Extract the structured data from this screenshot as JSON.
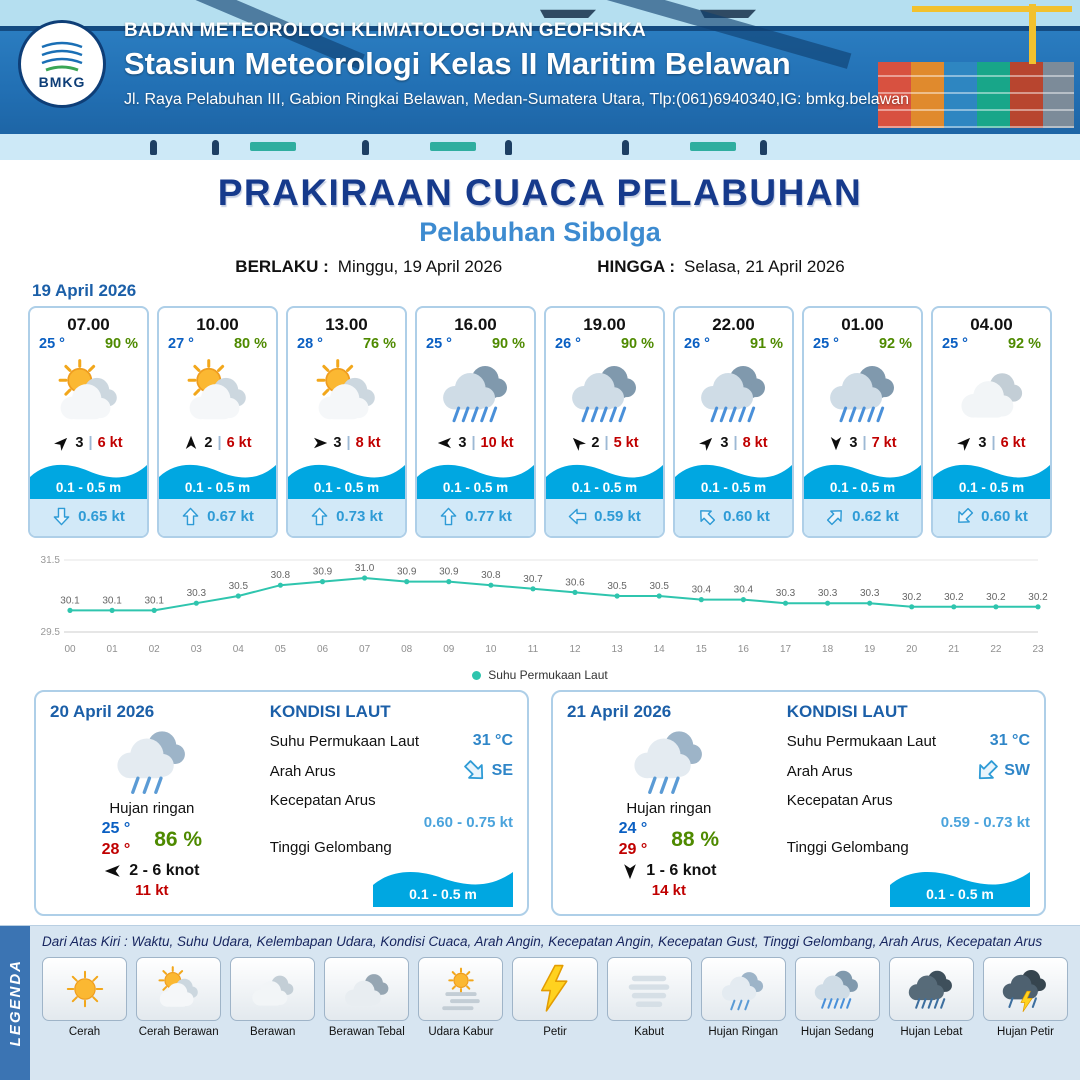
{
  "header": {
    "logo_text": "BMKG",
    "org": "BADAN METEOROLOGI KLIMATOLOGI DAN GEOFISIKA",
    "station": "Stasiun Meteorologi Kelas II Maritim Belawan",
    "address": "Jl. Raya Pelabuhan III, Gabion Ringkai Belawan, Medan-Sumatera Utara, Tlp:(061)6940340,IG: bmkg.belawan"
  },
  "title": {
    "main": "PRAKIRAAN CUACA PELABUHAN",
    "sub": "Pelabuhan Sibolga",
    "valid_from_label": "BERLAKU :",
    "valid_from": "Minggu, 19 April 2026",
    "valid_to_label": "HINGGA :",
    "valid_to": "Selasa, 21 April 2026"
  },
  "forecast": {
    "date": "19 April 2026",
    "cards": [
      {
        "time": "07.00",
        "temp": "25 °",
        "humidity": "90 %",
        "icon": "cerah-berawan",
        "wind_dir": "NE",
        "wind_force": "3",
        "wind_speed": "6 kt",
        "wave": "0.1 - 0.5 m",
        "current_dir": "S",
        "current_speed": "0.65 kt"
      },
      {
        "time": "10.00",
        "temp": "27 °",
        "humidity": "80 %",
        "icon": "cerah-berawan",
        "wind_dir": "N",
        "wind_force": "2",
        "wind_speed": "6 kt",
        "wave": "0.1 - 0.5 m",
        "current_dir": "N",
        "current_speed": "0.67 kt"
      },
      {
        "time": "13.00",
        "temp": "28 °",
        "humidity": "76 %",
        "icon": "cerah-berawan",
        "wind_dir": "E",
        "wind_force": "3",
        "wind_speed": "8 kt",
        "wave": "0.1 - 0.5 m",
        "current_dir": "N",
        "current_speed": "0.73 kt"
      },
      {
        "time": "16.00",
        "temp": "25 °",
        "humidity": "90 %",
        "icon": "hujan-sedang",
        "wind_dir": "W",
        "wind_force": "3",
        "wind_speed": "10 kt",
        "wave": "0.1 - 0.5 m",
        "current_dir": "N",
        "current_speed": "0.77 kt"
      },
      {
        "time": "19.00",
        "temp": "26 °",
        "humidity": "90 %",
        "icon": "hujan-sedang",
        "wind_dir": "NW",
        "wind_force": "2",
        "wind_speed": "5 kt",
        "wave": "0.1 - 0.5 m",
        "current_dir": "W",
        "current_speed": "0.59 kt"
      },
      {
        "time": "22.00",
        "temp": "26 °",
        "humidity": "91 %",
        "icon": "hujan-sedang",
        "wind_dir": "NE",
        "wind_force": "3",
        "wind_speed": "8 kt",
        "wave": "0.1 - 0.5 m",
        "current_dir": "NW",
        "current_speed": "0.60 kt"
      },
      {
        "time": "01.00",
        "temp": "25 °",
        "humidity": "92 %",
        "icon": "hujan-sedang",
        "wind_dir": "S",
        "wind_force": "3",
        "wind_speed": "7 kt",
        "wave": "0.1 - 0.5 m",
        "current_dir": "NE",
        "current_speed": "0.62 kt"
      },
      {
        "time": "04.00",
        "temp": "25 °",
        "humidity": "92 %",
        "icon": "berawan",
        "wind_dir": "NE",
        "wind_force": "3",
        "wind_speed": "6 kt",
        "wave": "0.1 - 0.5 m",
        "current_dir": "SW",
        "current_speed": "0.60 kt"
      }
    ]
  },
  "chart_data": {
    "type": "line",
    "x": [
      "00",
      "01",
      "02",
      "03",
      "04",
      "05",
      "06",
      "07",
      "08",
      "09",
      "10",
      "11",
      "12",
      "13",
      "14",
      "15",
      "16",
      "17",
      "18",
      "19",
      "20",
      "21",
      "22",
      "23"
    ],
    "series": [
      {
        "name": "Suhu Permukaan Laut",
        "values": [
          30.1,
          30.1,
          30.1,
          30.3,
          30.5,
          30.8,
          30.9,
          31.0,
          30.9,
          30.9,
          30.8,
          30.7,
          30.6,
          30.5,
          30.5,
          30.4,
          30.4,
          30.3,
          30.3,
          30.3,
          30.2,
          30.2,
          30.2,
          30.2
        ]
      }
    ],
    "ylim": [
      29.5,
      31.5
    ],
    "yticks": [
      "31.5",
      "29.5"
    ],
    "line_color": "#2fc5ae",
    "grid": "minimal",
    "legend_position": "bottom"
  },
  "daily": [
    {
      "date": "20 April 2026",
      "icon": "hujan-ringan",
      "condition": "Hujan ringan",
      "temp_min": "25 °",
      "temp_max": "28 °",
      "humidity": "86 %",
      "wind_dir": "W",
      "wind_range": "2 - 6 knot",
      "gust": "11 kt",
      "sea": {
        "title": "KONDISI LAUT",
        "sst_label": "Suhu Permukaan Laut",
        "sst": "31 °C",
        "current_dir_label": "Arah Arus",
        "current_dir": "SE",
        "current_speed_label": "Kecepatan Arus",
        "current_speed": "0.60 - 0.75 kt",
        "wave_label": "Tinggi Gelombang",
        "wave": "0.1 - 0.5 m"
      }
    },
    {
      "date": "21 April 2026",
      "icon": "hujan-ringan",
      "condition": "Hujan ringan",
      "temp_min": "24 °",
      "temp_max": "29 °",
      "humidity": "88 %",
      "wind_dir": "S",
      "wind_range": "1 - 6 knot",
      "gust": "14 kt",
      "sea": {
        "title": "KONDISI LAUT",
        "sst_label": "Suhu Permukaan Laut",
        "sst": "31 °C",
        "current_dir_label": "Arah Arus",
        "current_dir": "SW",
        "current_speed_label": "Kecepatan Arus",
        "current_speed": "0.59 - 0.73 kt",
        "wave_label": "Tinggi Gelombang",
        "wave": "0.1 - 0.5 m"
      }
    }
  ],
  "legend": {
    "title": "LEGENDA",
    "note": "Dari Atas Kiri : Waktu, Suhu Udara, Kelembapan Udara, Kondisi Cuaca, Arah Angin, Kecepatan Angin, Kecepatan Gust, Tinggi Gelombang, Arah Arus, Kecepatan Arus",
    "items": [
      {
        "label": "Cerah",
        "icon": "cerah"
      },
      {
        "label": "Cerah Berawan",
        "icon": "cerah-berawan"
      },
      {
        "label": "Berawan",
        "icon": "berawan"
      },
      {
        "label": "Berawan Tebal",
        "icon": "berawan-tebal"
      },
      {
        "label": "Udara Kabur",
        "icon": "udara-kabur"
      },
      {
        "label": "Petir",
        "icon": "petir"
      },
      {
        "label": "Kabut",
        "icon": "kabut"
      },
      {
        "label": "Hujan Ringan",
        "icon": "hujan-ringan"
      },
      {
        "label": "Hujan Sedang",
        "icon": "hujan-sedang"
      },
      {
        "label": "Hujan Lebat",
        "icon": "hujan-lebat"
      },
      {
        "label": "Hujan Petir",
        "icon": "hujan-petir"
      }
    ]
  },
  "colors": {
    "header_blue": "#2270b4",
    "title_blue": "#163a8c",
    "subtitle_blue": "#3d8bd0",
    "temp_blue": "#0a5fc2",
    "humidity_green": "#4e8a00",
    "gust_red": "#c00000",
    "wave_blue": "#00a7e1",
    "current_blue": "#2e9bd6",
    "line_teal": "#2fc5ae"
  }
}
